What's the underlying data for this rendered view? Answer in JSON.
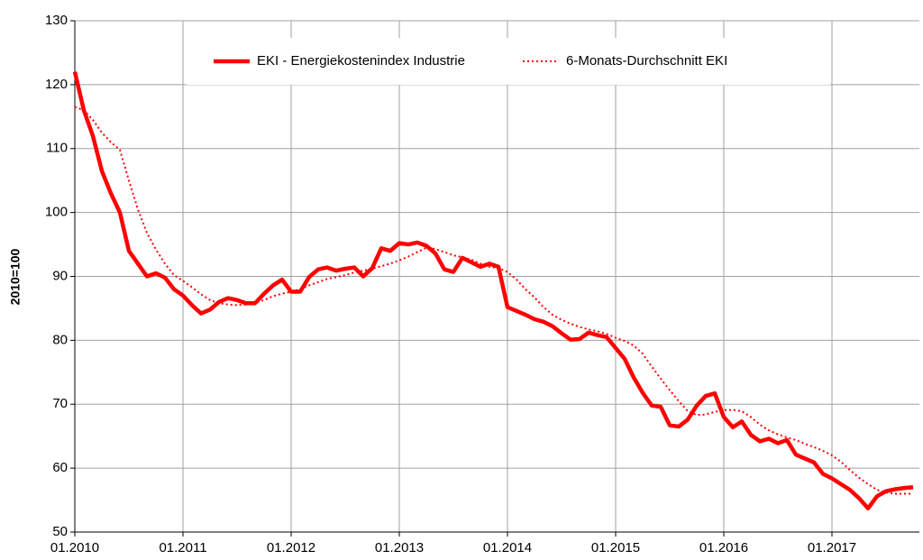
{
  "chart_data": {
    "type": "line",
    "y_label": "2010=100",
    "categories": [
      "01.2010",
      null,
      null,
      null,
      null,
      null,
      null,
      null,
      null,
      null,
      null,
      null,
      "01.2011",
      null,
      null,
      null,
      null,
      null,
      null,
      null,
      null,
      null,
      null,
      null,
      "01.2012",
      null,
      null,
      null,
      null,
      null,
      null,
      null,
      null,
      null,
      null,
      null,
      "01.2013",
      null,
      null,
      null,
      null,
      null,
      null,
      null,
      null,
      null,
      null,
      null,
      "01.2014",
      null,
      null,
      null,
      null,
      null,
      null,
      null,
      null,
      null,
      null,
      null,
      "01.2015",
      null,
      null,
      null,
      null,
      null,
      null,
      null,
      null,
      null,
      null,
      null,
      "01.2016",
      null,
      null,
      null,
      null,
      null,
      null,
      null,
      null,
      null,
      null,
      null,
      "01.2017",
      null,
      null,
      null,
      null,
      null,
      null,
      null,
      null,
      null
    ],
    "series": [
      {
        "name": "EKI - Energiekostenindex Industrie",
        "color": "#ff0000",
        "style": "solid",
        "values": [
          122,
          116,
          112,
          106.5,
          103,
          100,
          94,
          92,
          90,
          90.5,
          89.8,
          88,
          87,
          85.5,
          84.2,
          84.8,
          86,
          86.6,
          86.3,
          85.8,
          85.8,
          87.3,
          88.6,
          89.5,
          87.6,
          87.6,
          89.9,
          91.1,
          91.4,
          90.9,
          91.2,
          91.4,
          90,
          91.3,
          94.4,
          94,
          95.2,
          95,
          95.3,
          94.8,
          93.6,
          91.1,
          90.7,
          92.9,
          92.2,
          91.5,
          92,
          91.5,
          85.2,
          84.6,
          84,
          83.3,
          82.9,
          82.2,
          81.1,
          80.1,
          80.2,
          81.2,
          80.8,
          80.5,
          78.8,
          77.1,
          74.2,
          71.8,
          69.8,
          69.6,
          66.7,
          66.5,
          67.6,
          69.8,
          71.3,
          71.7,
          68,
          66.4,
          67.3,
          65.2,
          64.2,
          64.6,
          63.9,
          64.4,
          62.1,
          61.5,
          60.9,
          59.1,
          58.4,
          57.5,
          56.6,
          55.3,
          53.7,
          55.6,
          56.4,
          56.7,
          56.9,
          57
        ]
      },
      {
        "name": "6-Monats-Durchschnitt EKI",
        "color": "#ff0000",
        "style": "dotted",
        "values": [
          116.5,
          116,
          114.5,
          112.5,
          111,
          109.8,
          105,
          100.5,
          96.8,
          94.2,
          92,
          90.2,
          89.3,
          88.3,
          87.2,
          86.3,
          85.8,
          85.6,
          85.5,
          85.6,
          85.9,
          86.3,
          86.9,
          87.3,
          87.6,
          88,
          88.6,
          89.1,
          89.6,
          89.9,
          90.2,
          90.6,
          90.9,
          91.2,
          91.6,
          92,
          92.5,
          93.1,
          93.8,
          94.5,
          94.3,
          93.8,
          93.3,
          93,
          92.6,
          92,
          91.5,
          91.3,
          90.7,
          89.5,
          88,
          86.7,
          85.2,
          84,
          83.2,
          82.6,
          82.1,
          81.7,
          81.4,
          81,
          80.4,
          79.9,
          79.2,
          77.9,
          75.9,
          74,
          72.2,
          70.5,
          68.9,
          68.3,
          68.4,
          68.8,
          69.1,
          69.1,
          68.9,
          68,
          66.8,
          65.9,
          65.3,
          64.8,
          64.4,
          63.8,
          63.3,
          62.7,
          62,
          61,
          59.7,
          58.5,
          57.5,
          56.6,
          56.2,
          56,
          56,
          56
        ]
      }
    ],
    "ylim": [
      50,
      130
    ],
    "yticks": [
      50,
      60,
      70,
      80,
      90,
      100,
      110,
      120,
      130
    ],
    "grid": true,
    "legend": "top"
  }
}
